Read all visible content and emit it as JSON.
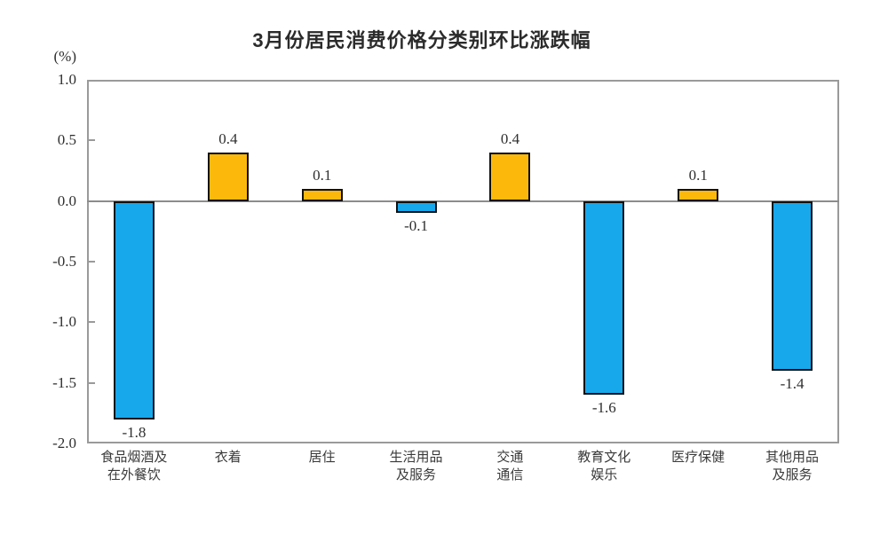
{
  "title": "3月份居民消费价格分类别环比涨跌幅",
  "chart_data": {
    "type": "bar",
    "title": "3月份居民消费价格分类别环比涨跌幅",
    "ylabel": "(%)",
    "ylim": [
      -2.0,
      1.0
    ],
    "yticks": [
      1.0,
      0.5,
      0.0,
      -0.5,
      -1.0,
      -1.5,
      -2.0
    ],
    "categories": [
      "食品烟酒及\n在外餐饮",
      "衣着",
      "居住",
      "生活用品\n及服务",
      "交通\n通信",
      "教育文化\n娱乐",
      "医疗保健",
      "其他用品\n及服务"
    ],
    "values": [
      -1.8,
      0.4,
      0.1,
      -0.1,
      0.4,
      -1.6,
      0.1,
      -1.4
    ],
    "value_labels": [
      "-1.8",
      "0.4",
      "0.1",
      "-0.1",
      "0.4",
      "-1.6",
      "0.1",
      "-1.4"
    ],
    "grid": false,
    "legend": false,
    "colors": {
      "positive_bar": "#FCB90B",
      "negative_bar": "#17A8EC",
      "bar_border": "#111111",
      "frame": "#9a9a9a",
      "zero_line": "#8c8c8c",
      "text": "#2f2f2f"
    }
  }
}
